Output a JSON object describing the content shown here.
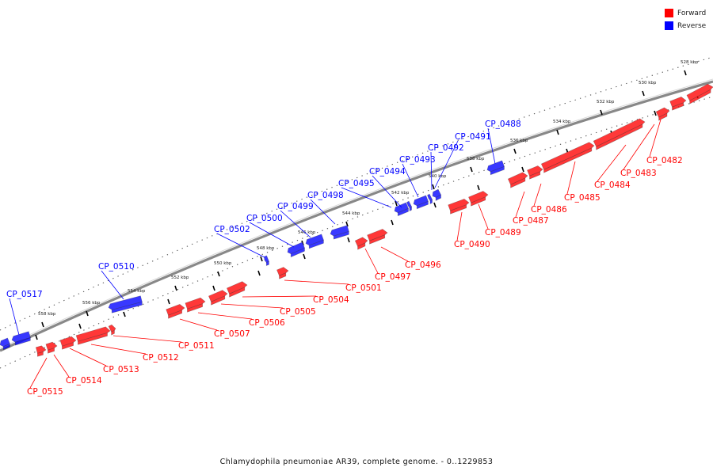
{
  "legend": {
    "forward_label": "Forward",
    "reverse_label": "Reverse",
    "forward_color": "#ff0000",
    "reverse_color": "#0000ff"
  },
  "caption": "Chlamydophila pneumoniae AR39, complete genome. - 0..1229853",
  "axis": {
    "unit": "kbp",
    "tick_labels": [
      "528 kbp",
      "530 kbp",
      "532 kbp",
      "534 kbp",
      "536 kbp",
      "538 kbp",
      "540 kbp",
      "542 kbp",
      "544 kbp",
      "546 kbp",
      "548 kbp",
      "550 kbp",
      "552 kbp",
      "554 kbp",
      "556 kbp",
      "558 kbp"
    ]
  },
  "genes": [
    {
      "name": "CP_0482",
      "strand": "forward"
    },
    {
      "name": "CP_0483",
      "strand": "forward"
    },
    {
      "name": "CP_0484",
      "strand": "forward"
    },
    {
      "name": "CP_0485",
      "strand": "forward"
    },
    {
      "name": "CP_0486",
      "strand": "forward"
    },
    {
      "name": "CP_0487",
      "strand": "forward"
    },
    {
      "name": "CP_0488",
      "strand": "reverse"
    },
    {
      "name": "CP_0489",
      "strand": "forward"
    },
    {
      "name": "CP_0490",
      "strand": "forward"
    },
    {
      "name": "CP_0491",
      "strand": "reverse"
    },
    {
      "name": "CP_0492",
      "strand": "reverse"
    },
    {
      "name": "CP_0493",
      "strand": "reverse"
    },
    {
      "name": "CP_0494",
      "strand": "reverse"
    },
    {
      "name": "CP_0495",
      "strand": "reverse"
    },
    {
      "name": "CP_0496",
      "strand": "forward"
    },
    {
      "name": "CP_0497",
      "strand": "forward"
    },
    {
      "name": "CP_0498",
      "strand": "reverse"
    },
    {
      "name": "CP_0499",
      "strand": "reverse"
    },
    {
      "name": "CP_0500",
      "strand": "reverse"
    },
    {
      "name": "CP_0501",
      "strand": "forward"
    },
    {
      "name": "CP_0502",
      "strand": "reverse"
    },
    {
      "name": "CP_0504",
      "strand": "forward"
    },
    {
      "name": "CP_0505",
      "strand": "forward"
    },
    {
      "name": "CP_0506",
      "strand": "forward"
    },
    {
      "name": "CP_0507",
      "strand": "forward"
    },
    {
      "name": "CP_0510",
      "strand": "reverse"
    },
    {
      "name": "CP_0511",
      "strand": "forward"
    },
    {
      "name": "CP_0512",
      "strand": "forward"
    },
    {
      "name": "CP_0513",
      "strand": "forward"
    },
    {
      "name": "CP_0514",
      "strand": "forward"
    },
    {
      "name": "CP_0515",
      "strand": "forward"
    },
    {
      "name": "CP_0517",
      "strand": "reverse"
    }
  ]
}
